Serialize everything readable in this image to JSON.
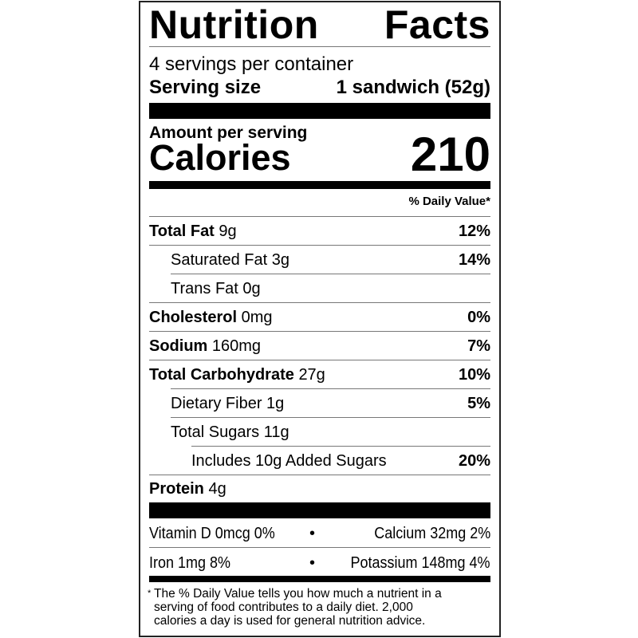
{
  "title_left": "Nutrition",
  "title_right": "Facts",
  "servings_per_container": "4 servings per container",
  "serving_size_label": "Serving size",
  "serving_size_value": "1 sandwich (52g)",
  "amount_per_serving": "Amount per serving",
  "calories_label": "Calories",
  "calories_value": "210",
  "daily_value_header": "% Daily Value*",
  "nutrients": [
    {
      "name": "Total Fat",
      "amount": "9g",
      "dv": "12%"
    },
    {
      "name": "Saturated Fat",
      "amount": "3g",
      "dv": "14%"
    },
    {
      "name": "Trans Fat",
      "amount": "0g",
      "dv": ""
    },
    {
      "name": "Cholesterol",
      "amount": "0mg",
      "dv": "0%"
    },
    {
      "name": "Sodium",
      "amount": "160mg",
      "dv": "7%"
    },
    {
      "name": "Total Carbohydrate",
      "amount": "27g",
      "dv": "10%"
    },
    {
      "name": "Dietary Fiber",
      "amount": "1g",
      "dv": "5%"
    },
    {
      "name": "Total Sugars",
      "amount": "11g",
      "dv": ""
    },
    {
      "name": "Includes 10g Added Sugars",
      "amount": "",
      "dv": "20%"
    },
    {
      "name": "Protein",
      "amount": "4g",
      "dv": ""
    }
  ],
  "micronutrients": [
    {
      "left": "Vitamin D 0mcg 0%",
      "bullet": "•",
      "right": "Calcium 32mg 2%"
    },
    {
      "left": "Iron 1mg 8%",
      "bullet": "•",
      "right": "Potassium 148mg 4%"
    }
  ],
  "footnote_star": "*",
  "footnote": [
    "The % Daily Value tells you how much a nutrient in a",
    "serving of food contributes to a daily diet. 2,000",
    "calories a day is used for general nutrition advice."
  ]
}
